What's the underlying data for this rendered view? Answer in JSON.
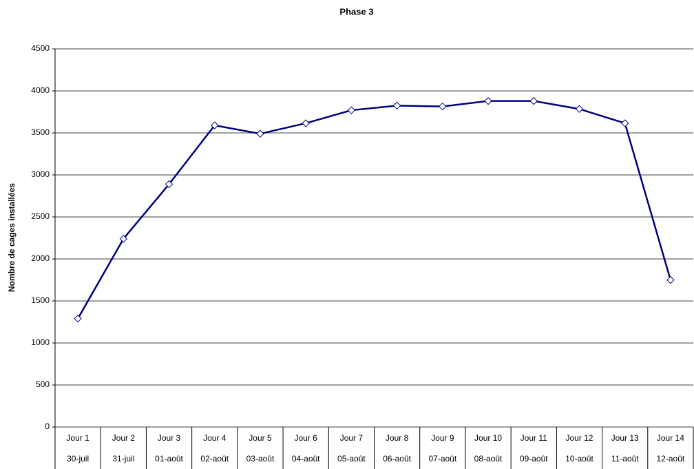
{
  "chart_data": {
    "type": "line",
    "title": "Phase 3",
    "y_label": "Nombre de cages installées",
    "categories": [
      "Jour 1",
      "Jour 2",
      "Jour 3",
      "Jour 4",
      "Jour 5",
      "Jour 6",
      "Jour 7",
      "Jour 8",
      "Jour 9",
      "Jour 10",
      "Jour 11",
      "Jour 12",
      "Jour 13",
      "Jour 14"
    ],
    "sub_categories": [
      "30-juil",
      "31-juil",
      "01-août",
      "02-août",
      "03-août",
      "04-août",
      "05-août",
      "06-août",
      "07-août",
      "08-août",
      "09-août",
      "10-août",
      "11-août",
      "12-août"
    ],
    "values": [
      1290,
      2240,
      2890,
      3590,
      3490,
      3615,
      3770,
      3825,
      3815,
      3880,
      3880,
      3785,
      3615,
      1750
    ],
    "color": "#000080",
    "ylim": [
      0,
      4500
    ],
    "yticks": [
      0,
      500,
      1000,
      1500,
      2000,
      2500,
      3000,
      3500,
      4000,
      4500
    ],
    "grid": true
  }
}
